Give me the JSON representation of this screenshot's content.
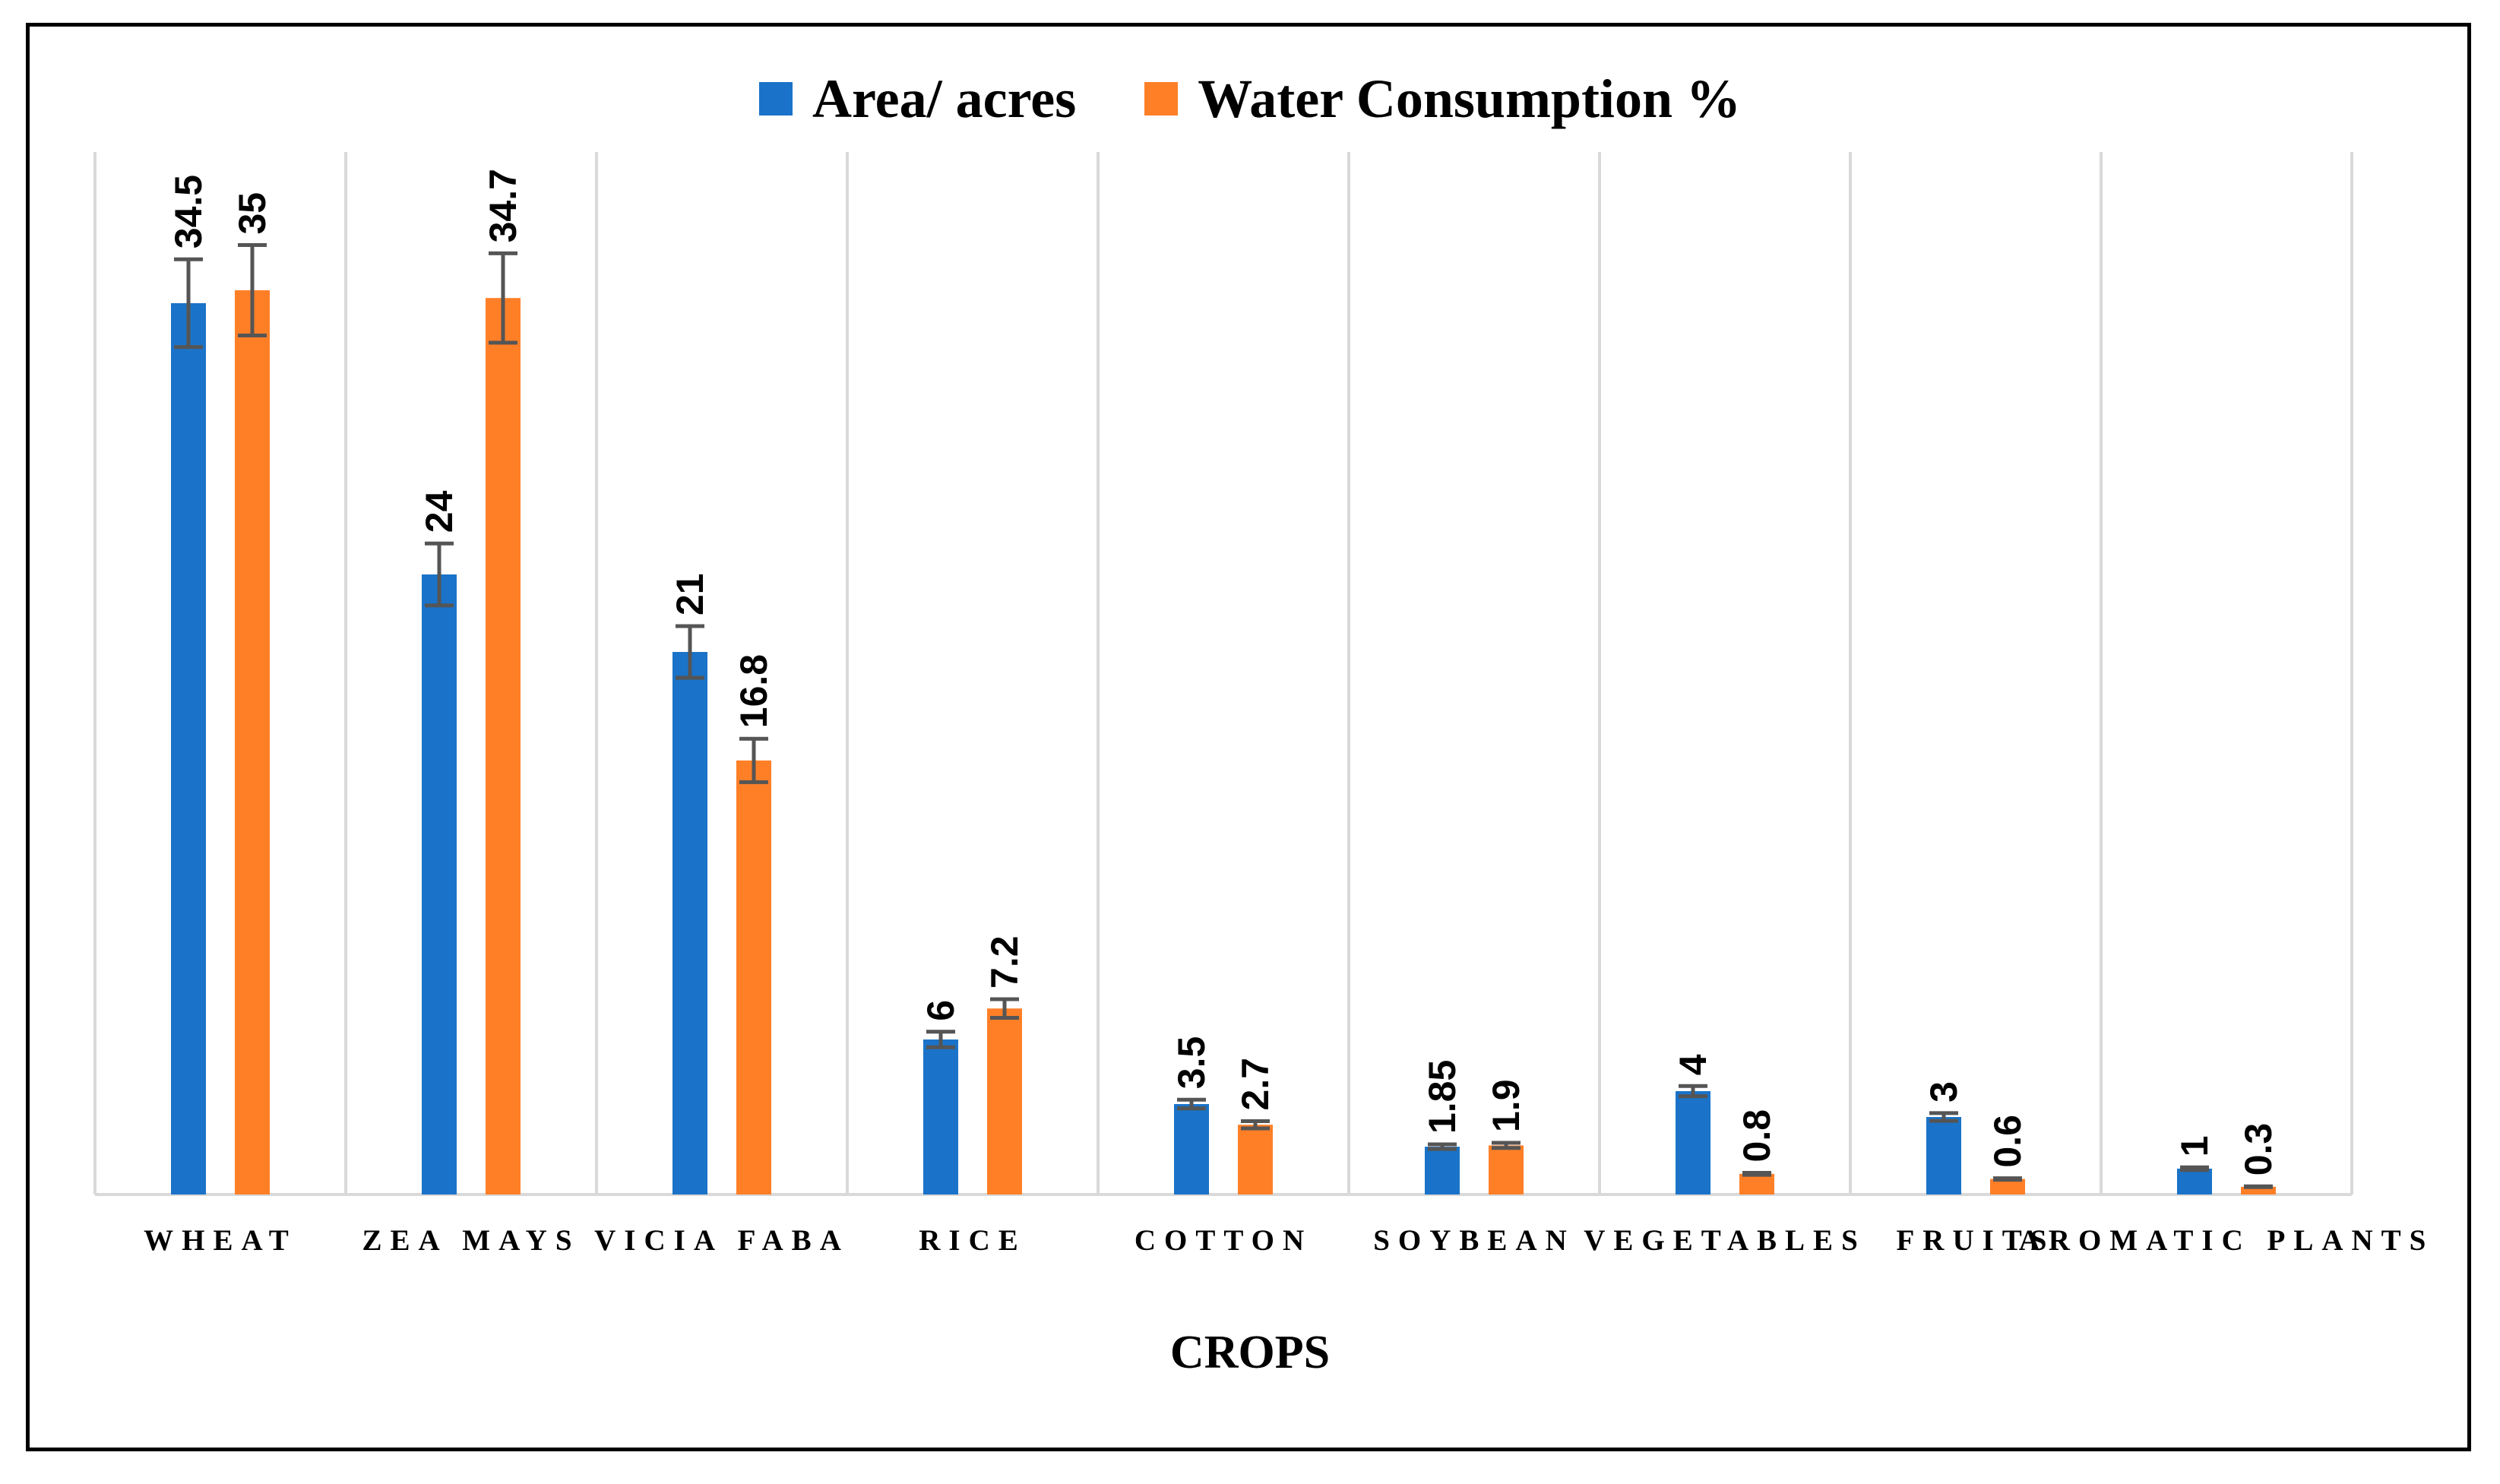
{
  "chart_data": {
    "type": "bar",
    "title": "",
    "xlabel": "CROPS",
    "ylabel": "",
    "ylim": [
      0,
      40
    ],
    "grid": "vertical category separators",
    "legend_position": "top-center",
    "categories": [
      "WHEAT",
      "ZEA MAYS",
      "VICIA FABA",
      "RICE",
      "COTTON",
      "SOYBEAN",
      "VEGETABLES",
      "FRUITS",
      "AROMATIC PLANTS"
    ],
    "series": [
      {
        "name": "Area/ acres",
        "color": "#1a73c8",
        "values": [
          34.5,
          24,
          21,
          6,
          3.5,
          1.85,
          4,
          3,
          1
        ],
        "labels": [
          "34.5",
          "24",
          "21",
          "6",
          "3.5",
          "1.85",
          "4",
          "3",
          "1"
        ],
        "error": [
          1.7,
          1.2,
          1.0,
          0.3,
          0.17,
          0.09,
          0.2,
          0.15,
          0.05
        ]
      },
      {
        "name": "Water Consumption %",
        "color": "#ff7f27",
        "values": [
          35,
          34.7,
          16.8,
          7.2,
          2.7,
          1.9,
          0.8,
          0.6,
          0.3
        ],
        "labels": [
          "35",
          "34.7",
          "16.8",
          "7.2",
          "2.7",
          "1.9",
          "0.8",
          "0.6",
          "0.3"
        ],
        "error": [
          1.75,
          1.73,
          0.84,
          0.36,
          0.14,
          0.1,
          0.04,
          0.03,
          0.015
        ]
      }
    ]
  }
}
